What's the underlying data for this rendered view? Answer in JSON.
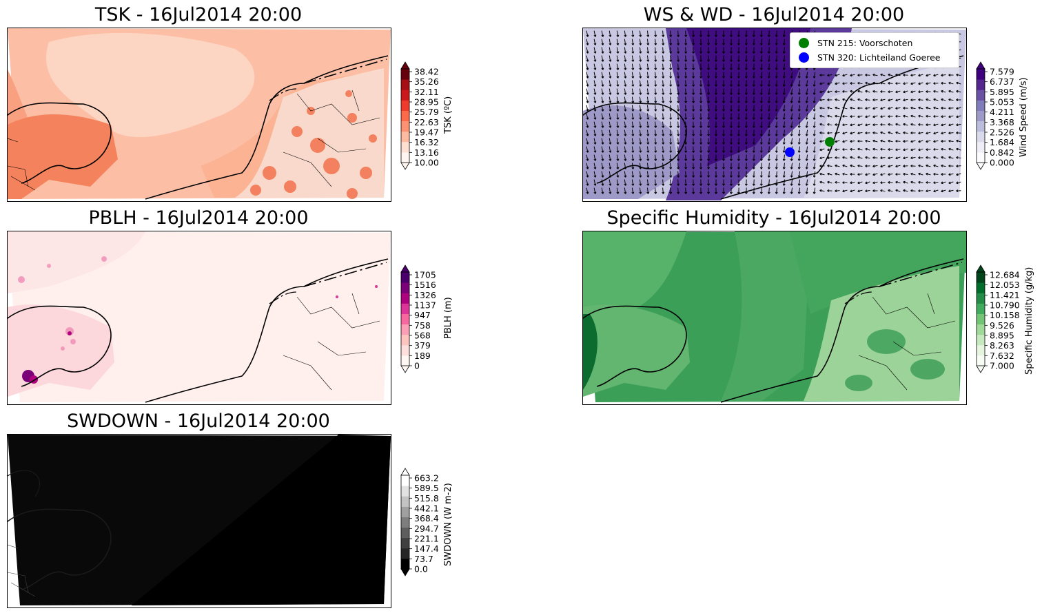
{
  "panels": {
    "tsk": {
      "title": "TSK - 16Jul2014 20:00",
      "colorbar": {
        "label": "TSK (ºC)",
        "ticks": [
          "38.42",
          "35.26",
          "32.11",
          "28.95",
          "25.79",
          "22.63",
          "19.47",
          "16.32",
          "13.16",
          "10.00"
        ],
        "colors": [
          "#fff5f0",
          "#fee0d2",
          "#fcbba1",
          "#fc9272",
          "#fb6a4a",
          "#ef3b2c",
          "#cb181d",
          "#a50f15",
          "#67000d"
        ]
      }
    },
    "ws": {
      "title": "WS & WD - 16Jul2014 20:00",
      "legend": [
        {
          "label": "STN 215: Voorschoten",
          "color": "#008000"
        },
        {
          "label": "STN 320: Lichteiland Goeree",
          "color": "#0000ff"
        }
      ],
      "colorbar": {
        "label": "Wind Speed (m/s)",
        "ticks": [
          "7.579",
          "6.737",
          "5.895",
          "5.053",
          "4.211",
          "3.368",
          "2.526",
          "1.684",
          "0.842",
          "0.000"
        ],
        "colors": [
          "#fcfbfd",
          "#efedf5",
          "#dadaeb",
          "#bcbddc",
          "#9e9ac8",
          "#807dba",
          "#6a51a3",
          "#54278f",
          "#3f007d"
        ]
      }
    },
    "pblh": {
      "title": "PBLH - 16Jul2014 20:00",
      "colorbar": {
        "label": "PBLH (m)",
        "ticks": [
          "1705",
          "1516",
          "1326",
          "1137",
          "947",
          "758",
          "568",
          "379",
          "189",
          "0"
        ],
        "colors": [
          "#fff7f3",
          "#fde0dd",
          "#fcc5c0",
          "#fa9fb5",
          "#f768a1",
          "#dd3497",
          "#ae017e",
          "#7a0177",
          "#49006a"
        ]
      }
    },
    "hum": {
      "title": "Specific Humidity - 16Jul2014 20:00",
      "colorbar": {
        "label": "Specific Humidity (g/kg)",
        "ticks": [
          "12.684",
          "12.053",
          "11.421",
          "10.790",
          "10.158",
          "9.526",
          "8.895",
          "8.263",
          "7.632",
          "7.000"
        ],
        "colors": [
          "#f7fcf5",
          "#e5f5e0",
          "#c7e9c0",
          "#a1d99b",
          "#74c476",
          "#41ab5d",
          "#238b45",
          "#006d2c",
          "#00441b"
        ]
      }
    },
    "swdown": {
      "title": "SWDOWN - 16Jul2014 20:00",
      "colorbar": {
        "label": "SWDOWN (W m-2)",
        "ticks": [
          "663.2",
          "589.5",
          "515.8",
          "442.1",
          "368.4",
          "294.7",
          "221.1",
          "147.4",
          "73.7",
          "0.0"
        ],
        "colors": [
          "#000000",
          "#262626",
          "#404040",
          "#5e5e5e",
          "#7e7e7e",
          "#a0a0a0",
          "#c3c3c3",
          "#e2e2e2",
          "#ffffff"
        ]
      }
    }
  }
}
